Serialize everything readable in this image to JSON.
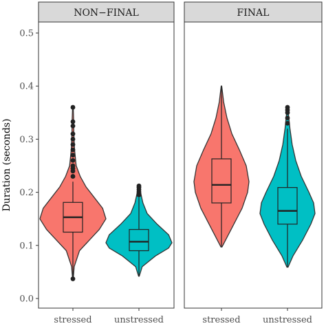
{
  "chart_data": {
    "type": "violin",
    "ylabel": "Duration (seconds)",
    "xlabel": "",
    "ylim": [
      0.0,
      0.5
    ],
    "yticks": [
      "0.0",
      "0.1",
      "0.2",
      "0.3",
      "0.4",
      "0.5"
    ],
    "categories": [
      "stressed",
      "unstressed"
    ],
    "grid": false,
    "legend": "none",
    "colors": {
      "stressed": "#f8766d",
      "unstressed": "#00bfc4",
      "strip": "#d9d9d9"
    },
    "panels": [
      {
        "title": "NON−FINAL",
        "groups": [
          {
            "name": "stressed",
            "min": 0.037,
            "q1": 0.125,
            "median": 0.153,
            "q3": 0.181,
            "whisker_high": 0.22,
            "max": 0.36,
            "outliers": [
              0.037,
              0.23,
              0.24,
              0.245,
              0.25,
              0.26,
              0.27,
              0.28,
              0.29,
              0.3,
              0.31,
              0.325,
              0.333,
              0.36
            ],
            "density": [
              [
                0.037,
                0.01
              ],
              [
                0.06,
                0.04
              ],
              [
                0.09,
                0.2
              ],
              [
                0.11,
                0.5
              ],
              [
                0.13,
                0.8
              ],
              [
                0.15,
                1.0
              ],
              [
                0.17,
                0.9
              ],
              [
                0.19,
                0.65
              ],
              [
                0.21,
                0.4
              ],
              [
                0.23,
                0.22
              ],
              [
                0.25,
                0.1
              ],
              [
                0.28,
                0.05
              ],
              [
                0.31,
                0.03
              ],
              [
                0.34,
                0.02
              ],
              [
                0.36,
                0.01
              ]
            ]
          },
          {
            "name": "unstressed",
            "min": 0.042,
            "q1": 0.09,
            "median": 0.107,
            "q3": 0.13,
            "whisker_high": 0.19,
            "max": 0.212,
            "outliers": [
              0.195,
              0.198,
              0.201,
              0.205,
              0.209,
              0.212
            ],
            "density": [
              [
                0.042,
                0.01
              ],
              [
                0.06,
                0.1
              ],
              [
                0.08,
                0.5
              ],
              [
                0.095,
                0.9
              ],
              [
                0.105,
                1.0
              ],
              [
                0.12,
                0.9
              ],
              [
                0.14,
                0.55
              ],
              [
                0.16,
                0.25
              ],
              [
                0.18,
                0.12
              ],
              [
                0.2,
                0.05
              ],
              [
                0.212,
                0.01
              ]
            ]
          }
        ]
      },
      {
        "title": "FINAL",
        "groups": [
          {
            "name": "stressed",
            "min": 0.097,
            "q1": 0.18,
            "median": 0.214,
            "q3": 0.263,
            "whisker_high": 0.4,
            "max": 0.4,
            "outliers": [],
            "density": [
              [
                0.097,
                0.02
              ],
              [
                0.11,
                0.15
              ],
              [
                0.14,
                0.45
              ],
              [
                0.17,
                0.75
              ],
              [
                0.2,
                0.95
              ],
              [
                0.22,
                1.0
              ],
              [
                0.25,
                0.9
              ],
              [
                0.28,
                0.65
              ],
              [
                0.31,
                0.38
              ],
              [
                0.34,
                0.2
              ],
              [
                0.37,
                0.08
              ],
              [
                0.4,
                0.01
              ]
            ]
          },
          {
            "name": "unstressed",
            "min": 0.059,
            "q1": 0.14,
            "median": 0.165,
            "q3": 0.209,
            "whisker_high": 0.32,
            "max": 0.36,
            "outliers": [
              0.33,
              0.34,
              0.35,
              0.355,
              0.36
            ],
            "density": [
              [
                0.059,
                0.02
              ],
              [
                0.08,
                0.2
              ],
              [
                0.11,
                0.55
              ],
              [
                0.14,
                0.85
              ],
              [
                0.16,
                1.0
              ],
              [
                0.18,
                0.95
              ],
              [
                0.2,
                0.78
              ],
              [
                0.23,
                0.5
              ],
              [
                0.26,
                0.3
              ],
              [
                0.29,
                0.17
              ],
              [
                0.32,
                0.09
              ],
              [
                0.34,
                0.05
              ],
              [
                0.36,
                0.01
              ]
            ]
          }
        ]
      }
    ]
  }
}
